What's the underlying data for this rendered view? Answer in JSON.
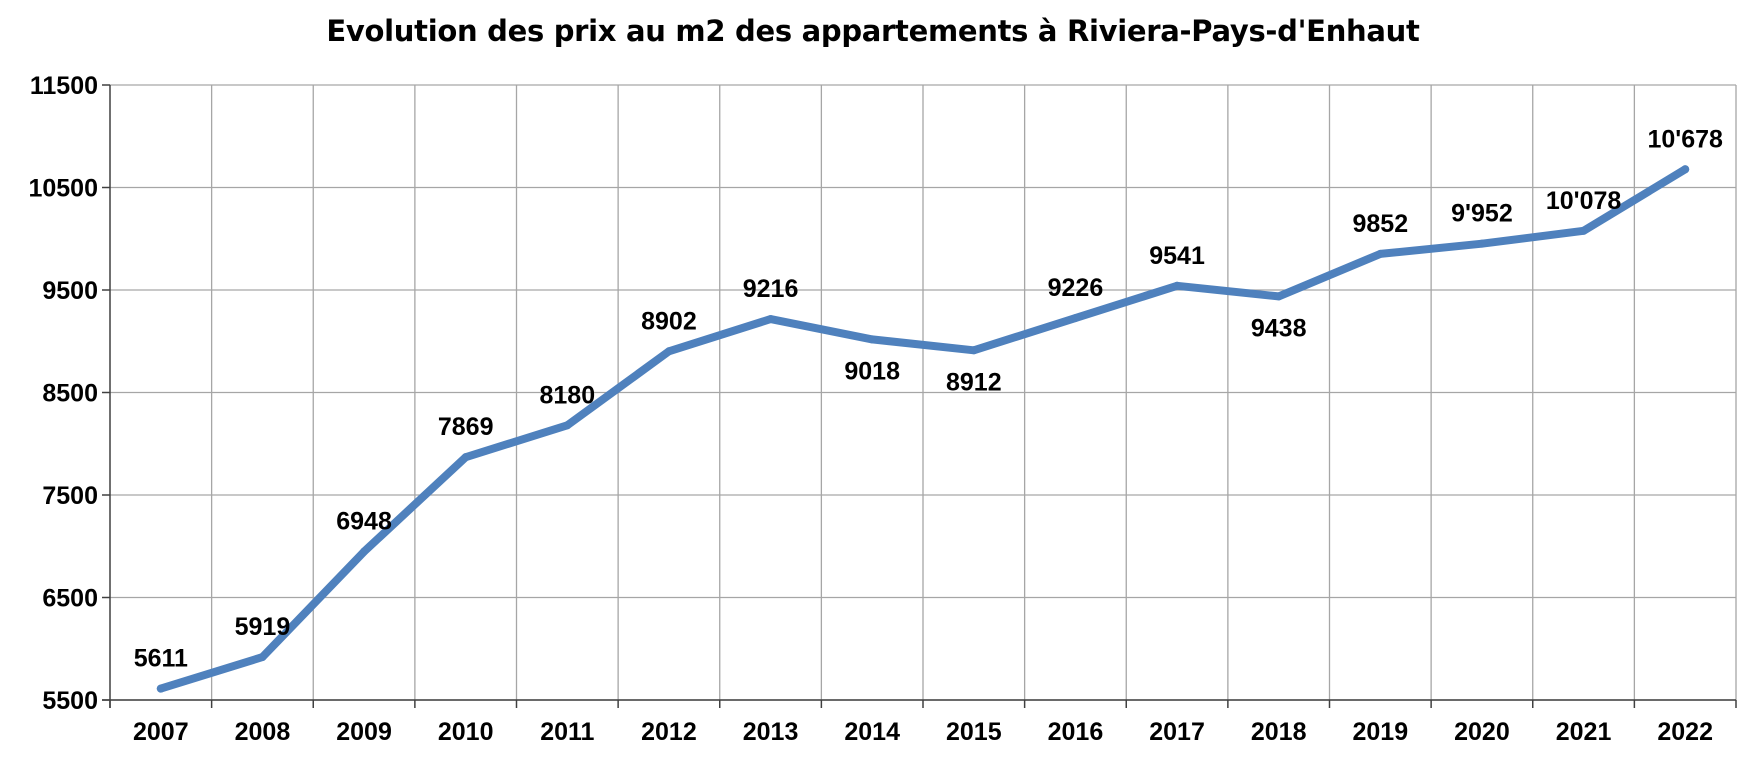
{
  "colors": {
    "line": "#4f81bd",
    "grid": "#a6a6a6",
    "axis": "#404040"
  },
  "chart_data": {
    "type": "line",
    "title": "Evolution des prix au m2 des appartements à Riviera-Pays-d'Enhaut",
    "xlabel": "",
    "ylabel": "",
    "categories": [
      "2007",
      "2008",
      "2009",
      "2010",
      "2011",
      "2012",
      "2013",
      "2014",
      "2015",
      "2016",
      "2017",
      "2018",
      "2019",
      "2020",
      "2021",
      "2022"
    ],
    "series": [
      {
        "values": [
          5611,
          5919,
          6948,
          7869,
          8180,
          8902,
          9216,
          9018,
          8912,
          9226,
          9541,
          9438,
          9852,
          9952,
          10078,
          10678
        ]
      }
    ],
    "data_labels": [
      "5611",
      "5919",
      "6948",
      "7869",
      "8180",
      "8902",
      "9216",
      "9018",
      "8912",
      "9226",
      "9541",
      "9438",
      "9852",
      "9'952",
      "10'078",
      "10'678"
    ],
    "label_position": [
      "above",
      "above",
      "above",
      "above",
      "above",
      "above",
      "above",
      "below",
      "below",
      "above",
      "above",
      "below",
      "above",
      "above",
      "above",
      "above"
    ],
    "ylim": [
      5500,
      11500
    ],
    "yticks": [
      5500,
      6500,
      7500,
      8500,
      9500,
      10500,
      11500
    ],
    "grid": true,
    "legend": "none"
  }
}
